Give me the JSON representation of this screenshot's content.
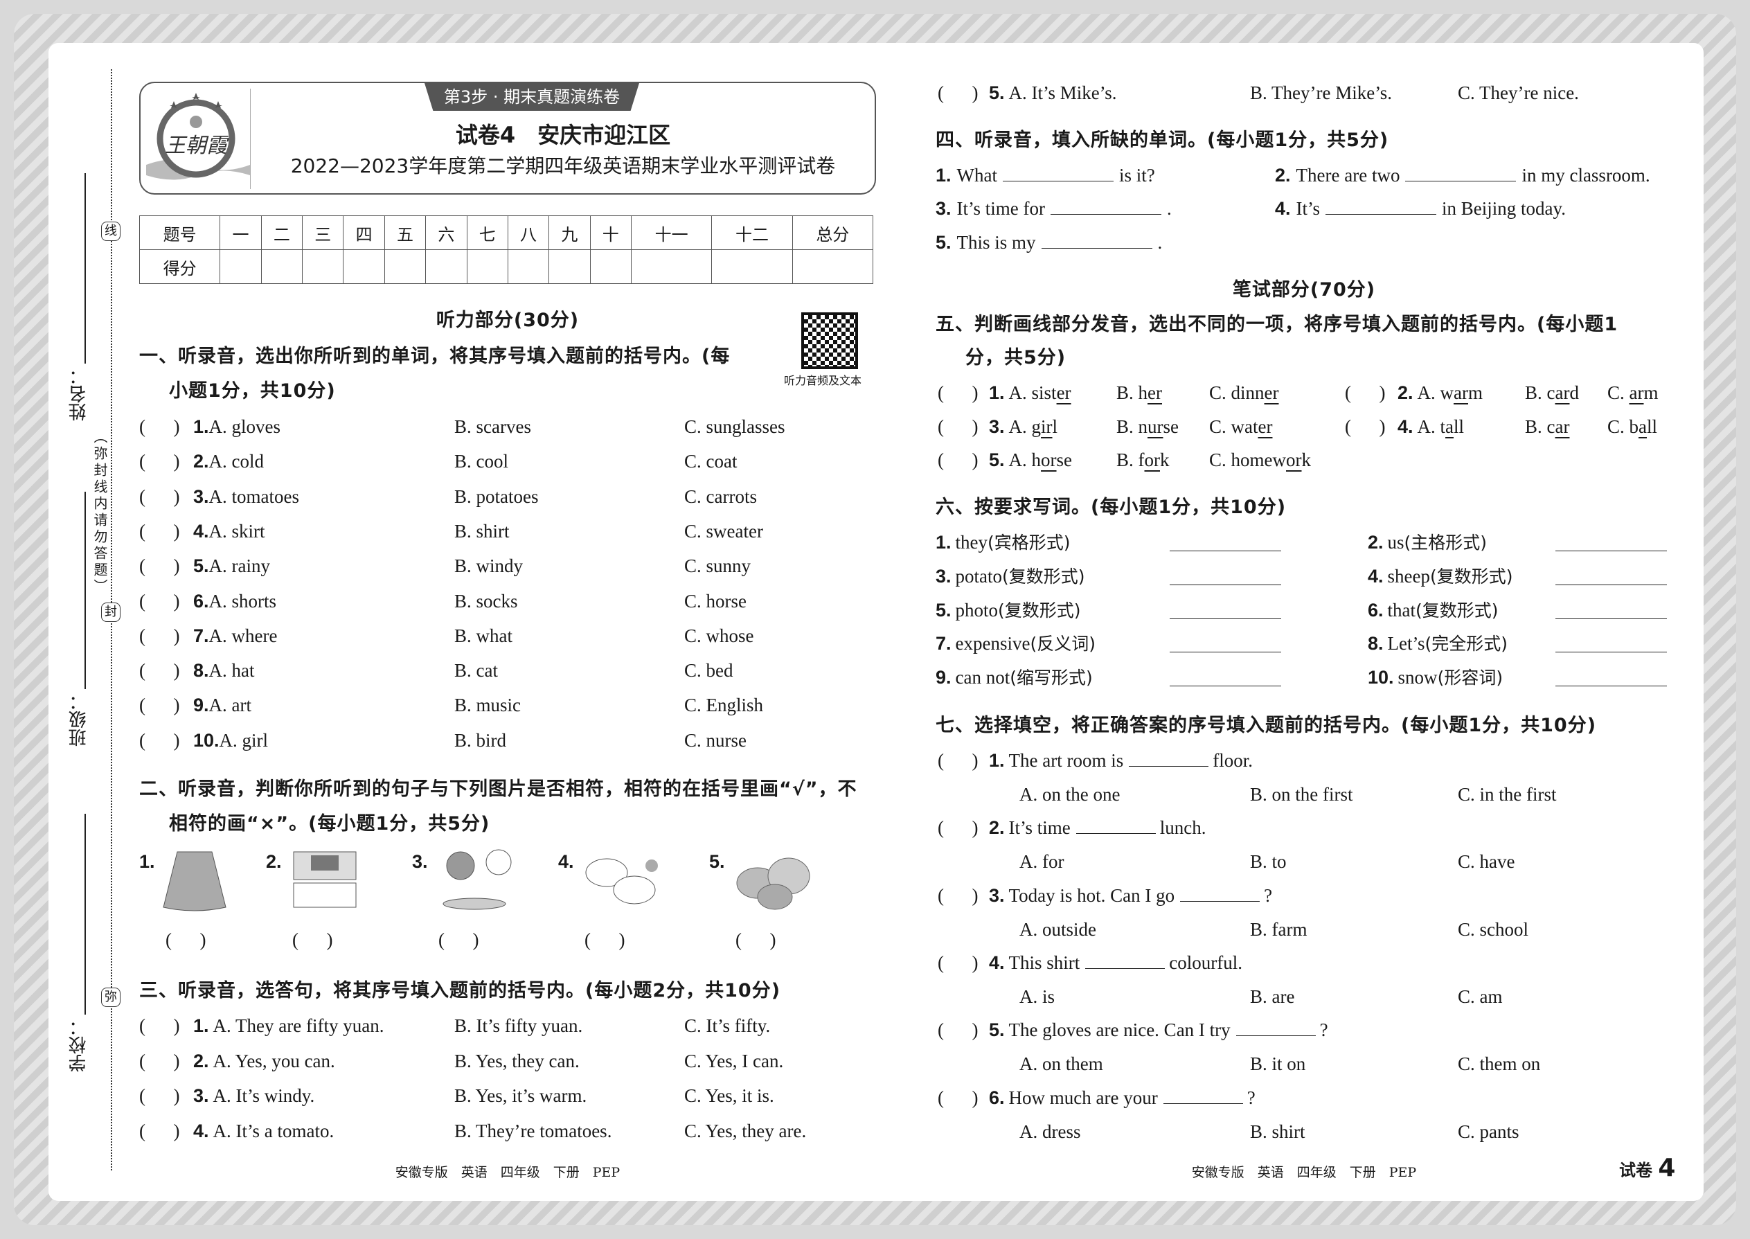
{
  "header": {
    "step_tab": "第3步 · 期末真题演练卷",
    "logo_text": "王朝霞",
    "title": "试卷4　安庆市迎江区",
    "subtitle": "2022—2023学年度第二学期四年级英语期末学业水平测评试卷"
  },
  "margin": {
    "name_label": "姓名：",
    "class_label": "班级：",
    "school_label": "学校：",
    "seal_chars": [
      "线",
      "封",
      "弥"
    ],
    "notice": "（弥封线内请勿答题）"
  },
  "score_table": {
    "row1": [
      "题号",
      "一",
      "二",
      "三",
      "四",
      "五",
      "六",
      "七",
      "八",
      "九",
      "十",
      "十一",
      "十二",
      "总分"
    ],
    "row2_label": "得分"
  },
  "listening": {
    "title": "听力部分(30分)",
    "qr_caption": "听力音频及文本",
    "sec1": {
      "heading1": "一、听录音，选出你所听到的单词，将其序号填入题前的括号内。(每",
      "heading2": "小题1分，共10分)",
      "items": [
        {
          "n": "1.",
          "a": "A. gloves",
          "b": "B. scarves",
          "c": "C. sunglasses"
        },
        {
          "n": "2.",
          "a": "A. cold",
          "b": "B. cool",
          "c": "C. coat"
        },
        {
          "n": "3.",
          "a": "A. tomatoes",
          "b": "B. potatoes",
          "c": "C. carrots"
        },
        {
          "n": "4.",
          "a": "A. skirt",
          "b": "B. shirt",
          "c": "C. sweater"
        },
        {
          "n": "5.",
          "a": "A. rainy",
          "b": "B. windy",
          "c": "C. sunny"
        },
        {
          "n": "6.",
          "a": "A. shorts",
          "b": "B. socks",
          "c": "C. horse"
        },
        {
          "n": "7.",
          "a": "A. where",
          "b": "B. what",
          "c": "C. whose"
        },
        {
          "n": "8.",
          "a": "A. hat",
          "b": "B. cat",
          "c": "C. bed"
        },
        {
          "n": "9.",
          "a": "A. art",
          "b": "B. music",
          "c": "C. English"
        },
        {
          "n": "10.",
          "a": "A. girl",
          "b": "B. bird",
          "c": "C. nurse"
        }
      ]
    },
    "sec2": {
      "heading1": "二、听录音，判断你所听到的句子与下列图片是否相符，相符的在括号里画“√”，不",
      "heading2": "相符的画“×”。(每小题1分，共5分)",
      "pictures": [
        {
          "n": "1.",
          "icon": "skirt-picture"
        },
        {
          "n": "2.",
          "icon": "classroom-picture"
        },
        {
          "n": "3.",
          "icon": "boy-eating-clock-picture"
        },
        {
          "n": "4.",
          "icon": "sheep-picture"
        },
        {
          "n": "5.",
          "icon": "potatoes-picture"
        }
      ]
    },
    "sec3": {
      "heading": "三、听录音，选答句，将其序号填入题前的括号内。(每小题2分，共10分)",
      "items": [
        {
          "n": "1.",
          "a": "A. They are fifty yuan.",
          "b": "B. It’s fifty yuan.",
          "c": "C. It’s fifty."
        },
        {
          "n": "2.",
          "a": "A. Yes, you can.",
          "b": "B. Yes, they can.",
          "c": "C. Yes, I can."
        },
        {
          "n": "3.",
          "a": "A. It’s windy.",
          "b": "B. Yes, it’s warm.",
          "c": "C. Yes, it is."
        },
        {
          "n": "4.",
          "a": "A. It’s a tomato.",
          "b": "B. They’re tomatoes.",
          "c": "C. Yes, they are."
        },
        {
          "n": "5.",
          "a": "A. It’s Mike’s.",
          "b": "B. They’re Mike’s.",
          "c": "C. They’re nice."
        }
      ]
    },
    "sec4": {
      "heading": "四、听录音，填入所缺的单词。(每小题1分，共5分)",
      "items": [
        {
          "n": "1.",
          "pre": "What",
          "post": "is it?"
        },
        {
          "n": "2.",
          "pre": "There are two",
          "post": "in my classroom."
        },
        {
          "n": "3.",
          "pre": "It’s time for",
          "post": "."
        },
        {
          "n": "4.",
          "pre": "It’s",
          "post": "in Beijing today."
        },
        {
          "n": "5.",
          "pre": "This is my",
          "post": "."
        }
      ]
    }
  },
  "writing": {
    "title": "笔试部分(70分)",
    "sec5": {
      "heading1": "五、判断画线部分发音，选出不同的一项，将序号填入题前的括号内。(每小题1",
      "heading2": "分，共5分)",
      "items": [
        {
          "n": "1.",
          "opts": [
            [
              "A. sist",
              "er",
              ""
            ],
            [
              "B. h",
              "er",
              ""
            ],
            [
              "C. dinn",
              "er",
              ""
            ]
          ]
        },
        {
          "n": "2.",
          "opts": [
            [
              "A. w",
              "ar",
              "m"
            ],
            [
              "B. c",
              "ar",
              "d"
            ],
            [
              "C. ",
              "ar",
              "m"
            ]
          ]
        },
        {
          "n": "3.",
          "opts": [
            [
              "A. g",
              "ir",
              "l"
            ],
            [
              "B. n",
              "ur",
              "se"
            ],
            [
              "C. wat",
              "er",
              ""
            ]
          ]
        },
        {
          "n": "4.",
          "opts": [
            [
              "A. t",
              "a",
              "ll"
            ],
            [
              "B. c",
              "ar",
              ""
            ],
            [
              "C. b",
              "a",
              "ll"
            ]
          ]
        },
        {
          "n": "5.",
          "opts": [
            [
              "A. h",
              "or",
              "se"
            ],
            [
              "B. f",
              "or",
              "k"
            ],
            [
              "C. homew",
              "or",
              "k"
            ]
          ]
        }
      ]
    },
    "sec6": {
      "heading": "六、按要求写词。(每小题1分，共10分)",
      "items": [
        {
          "n": "1.",
          "word": "they",
          "req": "(宾格形式)"
        },
        {
          "n": "2.",
          "word": "us",
          "req": "(主格形式)"
        },
        {
          "n": "3.",
          "word": "potato",
          "req": "(复数形式)"
        },
        {
          "n": "4.",
          "word": "sheep",
          "req": "(复数形式)"
        },
        {
          "n": "5.",
          "word": "photo",
          "req": "(复数形式)"
        },
        {
          "n": "6.",
          "word": "that",
          "req": "(复数形式)"
        },
        {
          "n": "7.",
          "word": "expensive",
          "req": "(反义词)"
        },
        {
          "n": "8.",
          "word": "Let’s",
          "req": "(完全形式)"
        },
        {
          "n": "9.",
          "word": "can not",
          "req": "(缩写形式)"
        },
        {
          "n": "10.",
          "word": "snow",
          "req": "(形容词)"
        }
      ]
    },
    "sec7": {
      "heading": "七、选择填空，将正确答案的序号填入题前的括号内。(每小题1分，共10分)",
      "items": [
        {
          "n": "1.",
          "pre": "The art room is",
          "post": "floor.",
          "a": "A. on the one",
          "b": "B. on the first",
          "c": "C. in the first"
        },
        {
          "n": "2.",
          "pre": "It’s time",
          "post": "lunch.",
          "a": "A. for",
          "b": "B. to",
          "c": "C. have"
        },
        {
          "n": "3.",
          "pre": "Today is hot. Can I go",
          "post": "?",
          "a": "A. outside",
          "b": "B. farm",
          "c": "C. school"
        },
        {
          "n": "4.",
          "pre": "This shirt",
          "post": "colourful.",
          "a": "A. is",
          "b": "B. are",
          "c": "C. am"
        },
        {
          "n": "5.",
          "pre": "The gloves are nice. Can I try",
          "post": "?",
          "a": "A. on them",
          "b": "B. it on",
          "c": "C. them on"
        },
        {
          "n": "6.",
          "pre": "How much are your",
          "post": "?",
          "a": "A. dress",
          "b": "B. shirt",
          "c": "C. pants"
        }
      ]
    }
  },
  "footer": {
    "left": "安徽专版　英语　四年级　下册　PEP",
    "right": "安徽专版　英语　四年级　下册　PEP",
    "paper_label": "试卷",
    "paper_number": "4"
  }
}
